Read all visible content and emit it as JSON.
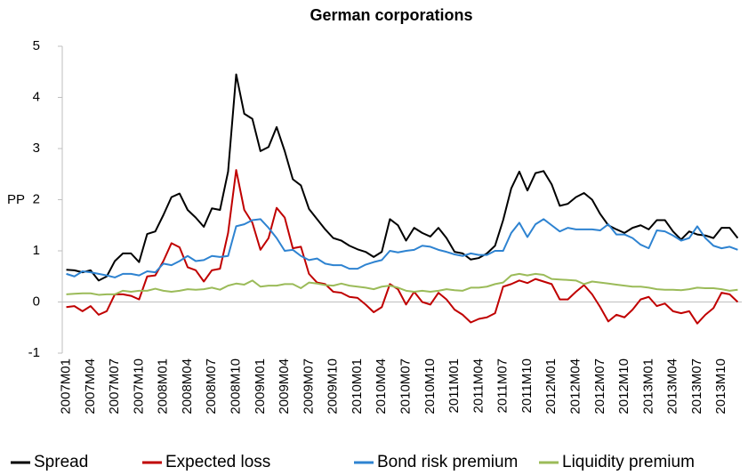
{
  "chart_data": {
    "type": "line",
    "title": "German corporations",
    "y_label": "PP",
    "categories": [
      "2007M01",
      null,
      null,
      "2007M04",
      null,
      null,
      "2007M07",
      null,
      null,
      "2007M10",
      null,
      null,
      "2008M01",
      null,
      null,
      "2008M04",
      null,
      null,
      "2008M07",
      null,
      null,
      "2008M10",
      null,
      null,
      "2009M01",
      null,
      null,
      "2009M04",
      null,
      null,
      "2009M07",
      null,
      null,
      "2009M10",
      null,
      null,
      "2010M01",
      null,
      null,
      "2010M04",
      null,
      null,
      "2010M07",
      null,
      null,
      "2010M10",
      null,
      null,
      "2011M01",
      null,
      null,
      "2011M04",
      null,
      null,
      "2011M07",
      null,
      null,
      "2011M10",
      null,
      null,
      "2012M01",
      null,
      null,
      "2012M04",
      null,
      null,
      "2012M07",
      null,
      null,
      "2012M10",
      null,
      null,
      "2013M01",
      null,
      null,
      "2013M04",
      null,
      null,
      "2013M07",
      null,
      null,
      "2013M10",
      null,
      null
    ],
    "series": [
      {
        "name": "Spread",
        "color": "#000000",
        "values": [
          0.63,
          0.62,
          0.58,
          0.62,
          0.42,
          0.5,
          0.8,
          0.95,
          0.95,
          0.78,
          1.33,
          1.38,
          1.7,
          2.05,
          2.12,
          1.8,
          1.65,
          1.47,
          1.83,
          1.8,
          2.55,
          4.45,
          3.68,
          3.58,
          2.95,
          3.03,
          3.42,
          2.95,
          2.4,
          2.28,
          1.82,
          1.62,
          1.42,
          1.25,
          1.2,
          1.1,
          1.03,
          0.98,
          0.88,
          0.98,
          1.62,
          1.5,
          1.2,
          1.45,
          1.35,
          1.28,
          1.45,
          1.25,
          0.98,
          0.95,
          0.83,
          0.86,
          0.95,
          1.1,
          1.6,
          2.22,
          2.55,
          2.18,
          2.52,
          2.56,
          2.3,
          1.88,
          1.92,
          2.05,
          2.13,
          2.0,
          1.72,
          1.5,
          1.42,
          1.35,
          1.45,
          1.5,
          1.42,
          1.6,
          1.6,
          1.38,
          1.22,
          1.38,
          1.32,
          1.3,
          1.25,
          1.45,
          1.45,
          1.25
        ]
      },
      {
        "name": "Expected loss",
        "color": "#c00000",
        "values": [
          -0.1,
          -0.08,
          -0.18,
          -0.08,
          -0.25,
          -0.18,
          0.15,
          0.15,
          0.12,
          0.05,
          0.5,
          0.52,
          0.8,
          1.15,
          1.07,
          0.68,
          0.62,
          0.4,
          0.62,
          0.65,
          1.35,
          2.58,
          1.8,
          1.55,
          1.02,
          1.25,
          1.84,
          1.65,
          1.05,
          1.08,
          0.55,
          0.38,
          0.35,
          0.2,
          0.18,
          0.1,
          0.08,
          -0.05,
          -0.2,
          -0.1,
          0.35,
          0.25,
          -0.05,
          0.2,
          0.0,
          -0.05,
          0.18,
          0.05,
          -0.15,
          -0.25,
          -0.4,
          -0.33,
          -0.3,
          -0.22,
          0.3,
          0.35,
          0.42,
          0.37,
          0.45,
          0.4,
          0.35,
          0.05,
          0.05,
          0.2,
          0.33,
          0.15,
          -0.1,
          -0.38,
          -0.25,
          -0.3,
          -0.15,
          0.05,
          0.1,
          -0.08,
          -0.03,
          -0.18,
          -0.22,
          -0.18,
          -0.42,
          -0.25,
          -0.12,
          0.18,
          0.15,
          0.0
        ]
      },
      {
        "name": "Bond risk premium",
        "color": "#2e83d1",
        "values": [
          0.55,
          0.5,
          0.6,
          0.58,
          0.55,
          0.52,
          0.48,
          0.55,
          0.55,
          0.52,
          0.6,
          0.58,
          0.75,
          0.72,
          0.8,
          0.9,
          0.8,
          0.82,
          0.9,
          0.88,
          0.9,
          1.48,
          1.52,
          1.6,
          1.62,
          1.45,
          1.25,
          1.0,
          1.02,
          0.9,
          0.82,
          0.85,
          0.75,
          0.72,
          0.72,
          0.65,
          0.65,
          0.73,
          0.78,
          0.82,
          1.0,
          0.97,
          1.0,
          1.02,
          1.1,
          1.08,
          1.02,
          0.98,
          0.93,
          0.9,
          0.95,
          0.92,
          0.92,
          1.0,
          1.0,
          1.35,
          1.55,
          1.27,
          1.52,
          1.62,
          1.5,
          1.38,
          1.45,
          1.42,
          1.42,
          1.42,
          1.4,
          1.52,
          1.32,
          1.32,
          1.25,
          1.12,
          1.05,
          1.4,
          1.38,
          1.3,
          1.2,
          1.25,
          1.48,
          1.25,
          1.1,
          1.05,
          1.08,
          1.02
        ]
      },
      {
        "name": "Liquidity premium",
        "color": "#9bbb59",
        "values": [
          0.15,
          0.16,
          0.17,
          0.17,
          0.14,
          0.15,
          0.15,
          0.22,
          0.2,
          0.22,
          0.22,
          0.26,
          0.22,
          0.2,
          0.22,
          0.25,
          0.24,
          0.25,
          0.28,
          0.24,
          0.32,
          0.36,
          0.34,
          0.42,
          0.3,
          0.32,
          0.32,
          0.35,
          0.35,
          0.27,
          0.38,
          0.36,
          0.33,
          0.32,
          0.36,
          0.32,
          0.3,
          0.28,
          0.25,
          0.3,
          0.32,
          0.28,
          0.22,
          0.2,
          0.22,
          0.2,
          0.22,
          0.25,
          0.23,
          0.22,
          0.28,
          0.28,
          0.3,
          0.35,
          0.38,
          0.52,
          0.55,
          0.52,
          0.55,
          0.53,
          0.45,
          0.44,
          0.43,
          0.42,
          0.35,
          0.4,
          0.38,
          0.36,
          0.34,
          0.32,
          0.3,
          0.3,
          0.28,
          0.25,
          0.24,
          0.24,
          0.23,
          0.25,
          0.28,
          0.27,
          0.27,
          0.25,
          0.22,
          0.24
        ]
      }
    ],
    "ylim": [
      -1,
      5
    ],
    "yticks": [
      -1,
      0,
      1,
      2,
      3,
      4,
      5
    ],
    "grid": false,
    "legend": "bottom"
  }
}
